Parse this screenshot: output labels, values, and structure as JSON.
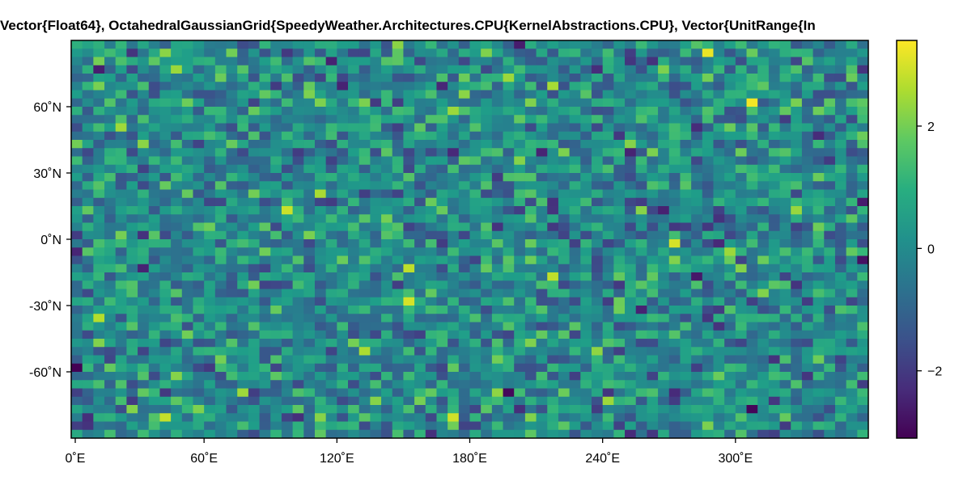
{
  "chart_data": {
    "type": "heatmap",
    "title": "Vector{Float64}, OctahedralGaussianGrid{SpeedyWeather.Architectures.CPU{KernelAbstractions.CPU}, Vector{UnitRange{In",
    "xlabel": "",
    "ylabel": "",
    "x_range": [
      0,
      360
    ],
    "y_range": [
      -90,
      90
    ],
    "x_ticks": [
      0,
      60,
      120,
      180,
      240,
      300
    ],
    "x_tick_labels": [
      "0˚E",
      "60˚E",
      "120˚E",
      "180˚E",
      "240˚E",
      "300˚E"
    ],
    "y_ticks": [
      60,
      30,
      0,
      -30,
      -60
    ],
    "y_tick_labels": [
      "60˚N",
      "30˚N",
      "0˚N",
      "-30˚N",
      "-60˚N"
    ],
    "grid_resolution": {
      "lon_cells": 72,
      "lat_cells": 48
    },
    "values_description": "random field, approximately standard normal",
    "colorbar": {
      "colormap": "viridis",
      "range": [
        -3.1,
        3.4
      ],
      "ticks": [
        -2,
        0,
        2
      ],
      "tick_labels": [
        "−2",
        "0",
        "2"
      ]
    },
    "highlights": [
      {
        "lon": 150,
        "lat": -28,
        "value": 3.0
      },
      {
        "lon": 305,
        "lat": 62,
        "value": 3.3
      },
      {
        "lon": 285,
        "lat": 84,
        "value": 3.2
      },
      {
        "lon": 270,
        "lat": -2,
        "value": 3.0
      },
      {
        "lon": 0,
        "lat": -58,
        "value": -3.1
      },
      {
        "lon": 307,
        "lat": -76,
        "value": -3.0
      },
      {
        "lon": 359,
        "lat": -9,
        "value": -2.8
      }
    ],
    "grid": false,
    "legend": "colorbar-right"
  }
}
